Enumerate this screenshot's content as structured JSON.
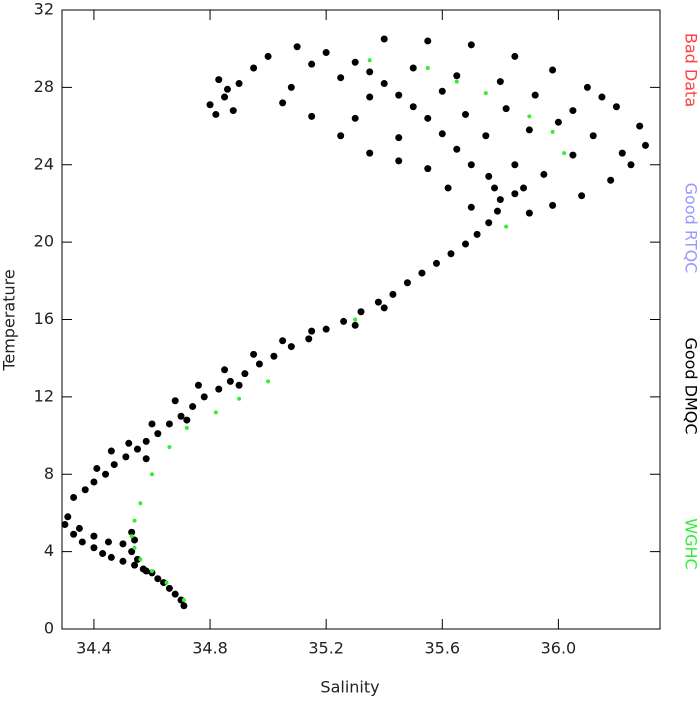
{
  "chart_data": {
    "type": "scatter",
    "x_label": "Salinity",
    "y_label": "Temperature",
    "xlim": [
      34.29,
      36.35
    ],
    "ylim": [
      0,
      32
    ],
    "xticks": [
      34.4,
      34.8,
      35.2,
      35.6,
      {
        "value": 36,
        "label": "36.0"
      }
    ],
    "yticks": [
      0,
      4,
      8,
      12,
      16,
      20,
      24,
      28,
      32
    ],
    "legend": "right",
    "series": [
      {
        "name": "Bad Data",
        "color": "#ff4040",
        "x": [],
        "values": []
      },
      {
        "name": "Good RTQC",
        "color": "#9999ff",
        "x": [],
        "values": []
      },
      {
        "name": "Good DMQC",
        "color": "#000000",
        "x": [
          34.71,
          34.7,
          34.68,
          34.66,
          34.64,
          34.62,
          34.6,
          34.57,
          34.54,
          34.5,
          34.46,
          34.43,
          34.4,
          34.36,
          34.33,
          34.3,
          34.31,
          34.35,
          34.4,
          34.45,
          34.5,
          34.53,
          34.55,
          34.58,
          34.53,
          34.54,
          34.33,
          34.37,
          34.4,
          34.44,
          34.47,
          34.51,
          34.55,
          34.58,
          34.62,
          34.66,
          34.7,
          34.74,
          34.78,
          34.83,
          34.87,
          34.92,
          34.97,
          35.02,
          35.08,
          35.14,
          35.2,
          35.26,
          35.32,
          35.38,
          35.43,
          35.48,
          35.53,
          35.58,
          35.63,
          35.68,
          35.72,
          35.76,
          35.79,
          35.8,
          35.78,
          35.76,
          34.52,
          34.6,
          34.68,
          34.76,
          34.85,
          34.95,
          35.05,
          35.15,
          35.3,
          35.4,
          34.46,
          34.41,
          34.58,
          34.72,
          34.9,
          35.7,
          35.65,
          35.6,
          35.55,
          35.5,
          35.45,
          35.4,
          35.35,
          35.3,
          35.2,
          35.1,
          35.0,
          34.95,
          34.9,
          34.85,
          34.82,
          34.88,
          35.05,
          35.15,
          35.25,
          35.35,
          35.45,
          35.55,
          35.4,
          35.55,
          35.7,
          35.85,
          35.98,
          36.1,
          36.2,
          36.28,
          36.3,
          36.25,
          36.18,
          36.08,
          35.98,
          35.9,
          35.85,
          35.95,
          36.05,
          36.12,
          36.05,
          35.92,
          35.8,
          35.65,
          35.5,
          35.35,
          35.25,
          35.15,
          35.62,
          35.7,
          35.85,
          35.75,
          35.9,
          36.0,
          35.68,
          35.6,
          34.83,
          34.86,
          34.8,
          35.08,
          35.3,
          35.45,
          35.82,
          36.15,
          36.22,
          35.88
        ],
        "values": [
          1.2,
          1.5,
          1.8,
          2.1,
          2.4,
          2.6,
          2.9,
          3.1,
          3.3,
          3.5,
          3.7,
          3.9,
          4.2,
          4.5,
          4.9,
          5.4,
          5.8,
          5.2,
          4.8,
          4.5,
          4.4,
          4.0,
          3.6,
          3.0,
          5.0,
          4.6,
          6.8,
          7.2,
          7.6,
          8.0,
          8.5,
          8.9,
          9.3,
          9.7,
          10.1,
          10.6,
          11.0,
          11.5,
          12.0,
          12.4,
          12.8,
          13.2,
          13.7,
          14.1,
          14.6,
          15.0,
          15.5,
          15.9,
          16.4,
          16.9,
          17.3,
          17.9,
          18.4,
          18.9,
          19.4,
          19.9,
          20.4,
          21.0,
          21.6,
          22.2,
          22.8,
          23.4,
          9.6,
          10.6,
          11.8,
          12.6,
          13.4,
          14.2,
          14.9,
          15.4,
          15.7,
          16.6,
          9.2,
          8.3,
          8.8,
          10.8,
          12.6,
          24.0,
          24.8,
          25.6,
          26.4,
          27.0,
          27.6,
          28.2,
          28.8,
          29.3,
          29.8,
          30.1,
          29.6,
          29.0,
          28.2,
          27.5,
          26.6,
          26.8,
          27.2,
          26.5,
          25.5,
          24.6,
          24.2,
          23.8,
          30.5,
          30.4,
          30.2,
          29.6,
          28.9,
          28.0,
          27.0,
          26.0,
          25.0,
          24.0,
          23.2,
          22.4,
          21.9,
          21.5,
          22.5,
          23.5,
          24.5,
          25.5,
          26.8,
          27.6,
          28.3,
          28.6,
          29.0,
          27.5,
          28.5,
          29.2,
          22.8,
          21.8,
          24.0,
          25.5,
          25.8,
          26.2,
          26.6,
          27.8,
          28.4,
          27.9,
          27.1,
          28.0,
          26.4,
          25.4,
          26.9,
          27.5,
          24.6,
          22.8
        ]
      },
      {
        "name": "WGHC",
        "color": "#33ee33",
        "x": [
          34.71,
          34.65,
          34.6,
          34.56,
          34.54,
          34.53,
          34.54,
          34.56,
          34.6,
          34.66,
          34.72,
          34.82,
          34.9,
          35.0,
          35.3,
          35.82,
          36.02,
          35.98,
          35.9,
          35.75,
          35.65,
          35.55,
          35.35
        ],
        "values": [
          1.5,
          2.4,
          3.0,
          3.6,
          4.2,
          4.8,
          5.6,
          6.5,
          8.0,
          9.4,
          10.4,
          11.2,
          11.9,
          12.8,
          16.0,
          20.8,
          24.6,
          25.7,
          26.5,
          27.7,
          28.3,
          29.0,
          29.4
        ]
      }
    ]
  }
}
